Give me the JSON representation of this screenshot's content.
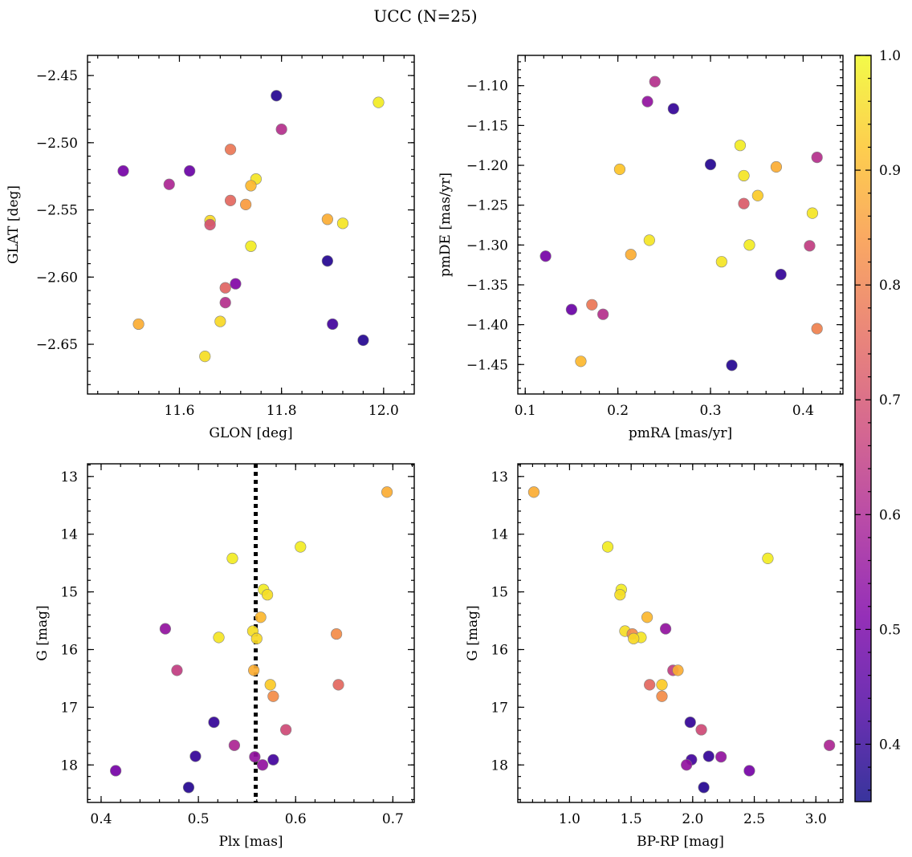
{
  "figure_title": "UCC (N=25)",
  "colorbar": {
    "colormap": "plasma",
    "range": [
      0.35,
      1.0
    ],
    "ticks": [
      "0.4",
      "0.5",
      "0.6",
      "0.7",
      "0.8",
      "0.9",
      "1.0"
    ]
  },
  "chart_data": [
    {
      "type": "scatter",
      "name": "glon-glat",
      "xlabel": "GLON [deg]",
      "ylabel": "GLAT [deg]",
      "xlim": [
        11.42,
        12.06
      ],
      "ylim": [
        -2.687,
        -2.435
      ],
      "y_inverted": false,
      "xticks": [
        "11.6",
        "11.8",
        "12.0"
      ],
      "yticks": [
        "-2.45",
        "-2.50",
        "-2.55",
        "-2.60",
        "-2.65"
      ],
      "points": [
        {
          "x": 11.79,
          "y": -2.465,
          "c": 0.38
        },
        {
          "x": 11.99,
          "y": -2.47,
          "c": 0.98
        },
        {
          "x": 11.8,
          "y": -2.49,
          "c": 0.62
        },
        {
          "x": 11.7,
          "y": -2.505,
          "c": 0.78
        },
        {
          "x": 11.49,
          "y": -2.521,
          "c": 0.5
        },
        {
          "x": 11.62,
          "y": -2.521,
          "c": 0.48
        },
        {
          "x": 11.75,
          "y": -2.527,
          "c": 0.97
        },
        {
          "x": 11.58,
          "y": -2.531,
          "c": 0.6
        },
        {
          "x": 11.74,
          "y": -2.532,
          "c": 0.9
        },
        {
          "x": 11.7,
          "y": -2.543,
          "c": 0.75
        },
        {
          "x": 11.73,
          "y": -2.546,
          "c": 0.85
        },
        {
          "x": 11.89,
          "y": -2.557,
          "c": 0.88
        },
        {
          "x": 11.66,
          "y": -2.558,
          "c": 0.95
        },
        {
          "x": 11.92,
          "y": -2.56,
          "c": 0.97
        },
        {
          "x": 11.66,
          "y": -2.561,
          "c": 0.7
        },
        {
          "x": 11.74,
          "y": -2.577,
          "c": 0.98
        },
        {
          "x": 11.89,
          "y": -2.588,
          "c": 0.38
        },
        {
          "x": 11.71,
          "y": -2.605,
          "c": 0.52
        },
        {
          "x": 11.69,
          "y": -2.608,
          "c": 0.74
        },
        {
          "x": 11.69,
          "y": -2.619,
          "c": 0.62
        },
        {
          "x": 11.68,
          "y": -2.633,
          "c": 0.95
        },
        {
          "x": 11.52,
          "y": -2.635,
          "c": 0.88
        },
        {
          "x": 11.9,
          "y": -2.635,
          "c": 0.42
        },
        {
          "x": 11.96,
          "y": -2.647,
          "c": 0.38
        },
        {
          "x": 11.65,
          "y": -2.659,
          "c": 0.96
        }
      ]
    },
    {
      "type": "scatter",
      "name": "pmra-pmde",
      "xlabel": "pmRA [mas/yr]",
      "ylabel": "pmDE [mas/yr]",
      "xlim": [
        0.092,
        0.443
      ],
      "ylim": [
        -1.487,
        -1.062
      ],
      "y_inverted": false,
      "xticks": [
        "0.1",
        "0.2",
        "0.3",
        "0.4"
      ],
      "yticks": [
        "-1.10",
        "-1.15",
        "-1.20",
        "-1.25",
        "-1.30",
        "-1.35",
        "-1.40",
        "-1.45"
      ],
      "points": [
        {
          "x": 0.24,
          "y": -1.095,
          "c": 0.62
        },
        {
          "x": 0.232,
          "y": -1.12,
          "c": 0.55
        },
        {
          "x": 0.26,
          "y": -1.129,
          "c": 0.4
        },
        {
          "x": 0.332,
          "y": -1.175,
          "c": 0.98
        },
        {
          "x": 0.415,
          "y": -1.19,
          "c": 0.62
        },
        {
          "x": 0.3,
          "y": -1.199,
          "c": 0.38
        },
        {
          "x": 0.371,
          "y": -1.202,
          "c": 0.88
        },
        {
          "x": 0.202,
          "y": -1.205,
          "c": 0.92
        },
        {
          "x": 0.336,
          "y": -1.213,
          "c": 0.97
        },
        {
          "x": 0.351,
          "y": -1.238,
          "c": 0.93
        },
        {
          "x": 0.336,
          "y": -1.248,
          "c": 0.72
        },
        {
          "x": 0.41,
          "y": -1.26,
          "c": 0.97
        },
        {
          "x": 0.234,
          "y": -1.294,
          "c": 0.97
        },
        {
          "x": 0.342,
          "y": -1.3,
          "c": 0.98
        },
        {
          "x": 0.407,
          "y": -1.301,
          "c": 0.65
        },
        {
          "x": 0.214,
          "y": -1.312,
          "c": 0.88
        },
        {
          "x": 0.122,
          "y": -1.314,
          "c": 0.5
        },
        {
          "x": 0.312,
          "y": -1.321,
          "c": 0.97
        },
        {
          "x": 0.376,
          "y": -1.337,
          "c": 0.4
        },
        {
          "x": 0.172,
          "y": -1.375,
          "c": 0.78
        },
        {
          "x": 0.15,
          "y": -1.381,
          "c": 0.48
        },
        {
          "x": 0.184,
          "y": -1.387,
          "c": 0.62
        },
        {
          "x": 0.415,
          "y": -1.405,
          "c": 0.8
        },
        {
          "x": 0.16,
          "y": -1.446,
          "c": 0.9
        },
        {
          "x": 0.323,
          "y": -1.451,
          "c": 0.38
        }
      ]
    },
    {
      "type": "scatter",
      "name": "plx-g",
      "xlabel": "Plx [mas]",
      "ylabel": "G [mag]",
      "xlim": [
        0.386,
        0.722
      ],
      "ylim": [
        12.78,
        18.65
      ],
      "y_inverted": true,
      "xticks": [
        "0.4",
        "0.5",
        "0.6",
        "0.7"
      ],
      "yticks": [
        "13",
        "14",
        "15",
        "16",
        "17",
        "18"
      ],
      "vline": 0.559,
      "points": [
        {
          "x": 0.694,
          "y": 13.27,
          "c": 0.88
        },
        {
          "x": 0.605,
          "y": 14.22,
          "c": 0.98
        },
        {
          "x": 0.535,
          "y": 14.42,
          "c": 0.98
        },
        {
          "x": 0.567,
          "y": 14.96,
          "c": 0.98
        },
        {
          "x": 0.571,
          "y": 15.05,
          "c": 0.96
        },
        {
          "x": 0.564,
          "y": 15.44,
          "c": 0.9
        },
        {
          "x": 0.466,
          "y": 15.64,
          "c": 0.55
        },
        {
          "x": 0.556,
          "y": 15.68,
          "c": 0.96
        },
        {
          "x": 0.642,
          "y": 15.73,
          "c": 0.82
        },
        {
          "x": 0.521,
          "y": 15.79,
          "c": 0.97
        },
        {
          "x": 0.56,
          "y": 15.81,
          "c": 0.95
        },
        {
          "x": 0.478,
          "y": 16.36,
          "c": 0.65
        },
        {
          "x": 0.557,
          "y": 16.36,
          "c": 0.88
        },
        {
          "x": 0.574,
          "y": 16.61,
          "c": 0.93
        },
        {
          "x": 0.644,
          "y": 16.61,
          "c": 0.75
        },
        {
          "x": 0.577,
          "y": 16.81,
          "c": 0.82
        },
        {
          "x": 0.516,
          "y": 17.26,
          "c": 0.4
        },
        {
          "x": 0.59,
          "y": 17.39,
          "c": 0.68
        },
        {
          "x": 0.537,
          "y": 17.66,
          "c": 0.6
        },
        {
          "x": 0.497,
          "y": 17.85,
          "c": 0.4
        },
        {
          "x": 0.558,
          "y": 17.86,
          "c": 0.55
        },
        {
          "x": 0.577,
          "y": 17.91,
          "c": 0.42
        },
        {
          "x": 0.566,
          "y": 18.0,
          "c": 0.55
        },
        {
          "x": 0.415,
          "y": 18.1,
          "c": 0.5
        },
        {
          "x": 0.49,
          "y": 18.39,
          "c": 0.38
        }
      ]
    },
    {
      "type": "scatter",
      "name": "bprp-g",
      "xlabel": "BP-RP [mag]",
      "ylabel": "G [mag]",
      "xlim": [
        0.58,
        3.22
      ],
      "ylim": [
        12.78,
        18.65
      ],
      "y_inverted": true,
      "xticks": [
        "1.0",
        "1.5",
        "2.0",
        "2.5",
        "3.0"
      ],
      "yticks": [
        "13",
        "14",
        "15",
        "16",
        "17",
        "18"
      ],
      "points": [
        {
          "x": 0.71,
          "y": 13.27,
          "c": 0.88
        },
        {
          "x": 1.31,
          "y": 14.22,
          "c": 0.98
        },
        {
          "x": 2.61,
          "y": 14.42,
          "c": 0.98
        },
        {
          "x": 1.42,
          "y": 14.96,
          "c": 0.98
        },
        {
          "x": 1.41,
          "y": 15.05,
          "c": 0.96
        },
        {
          "x": 1.63,
          "y": 15.44,
          "c": 0.9
        },
        {
          "x": 1.78,
          "y": 15.64,
          "c": 0.55
        },
        {
          "x": 1.45,
          "y": 15.68,
          "c": 0.96
        },
        {
          "x": 1.51,
          "y": 15.73,
          "c": 0.82
        },
        {
          "x": 1.58,
          "y": 15.79,
          "c": 0.97
        },
        {
          "x": 1.52,
          "y": 15.81,
          "c": 0.95
        },
        {
          "x": 1.84,
          "y": 16.36,
          "c": 0.65
        },
        {
          "x": 1.88,
          "y": 16.36,
          "c": 0.88
        },
        {
          "x": 1.75,
          "y": 16.61,
          "c": 0.93
        },
        {
          "x": 1.65,
          "y": 16.61,
          "c": 0.75
        },
        {
          "x": 1.75,
          "y": 16.81,
          "c": 0.82
        },
        {
          "x": 1.98,
          "y": 17.26,
          "c": 0.4
        },
        {
          "x": 2.07,
          "y": 17.39,
          "c": 0.68
        },
        {
          "x": 3.11,
          "y": 17.66,
          "c": 0.6
        },
        {
          "x": 2.13,
          "y": 17.85,
          "c": 0.4
        },
        {
          "x": 2.23,
          "y": 17.86,
          "c": 0.55
        },
        {
          "x": 1.99,
          "y": 17.91,
          "c": 0.42
        },
        {
          "x": 1.95,
          "y": 18.0,
          "c": 0.55
        },
        {
          "x": 2.46,
          "y": 18.1,
          "c": 0.5
        },
        {
          "x": 2.09,
          "y": 18.39,
          "c": 0.38
        }
      ]
    }
  ]
}
